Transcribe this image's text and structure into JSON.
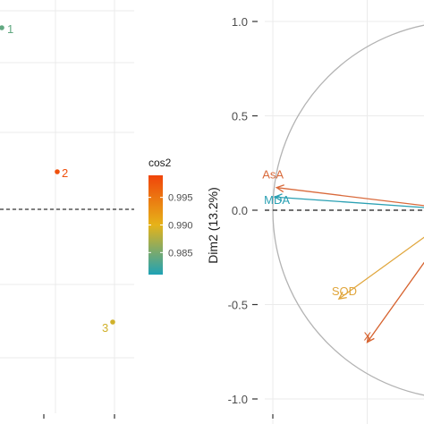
{
  "chart_data": [
    {
      "type": "scatter",
      "title": "",
      "xlabel": "",
      "ylabel": "",
      "grid": true,
      "reference_line": "horizontal dashed at y = 0",
      "points": [
        {
          "label": "1",
          "cos2": 0.984
        },
        {
          "label": "2",
          "cos2": 0.998
        },
        {
          "label": "3",
          "cos2": 0.989
        }
      ],
      "legend": {
        "title": "cos2",
        "ticks": [
          "0.985",
          "0.990",
          "0.995"
        ],
        "range": [
          0.981,
          0.999
        ],
        "colors": [
          "#1fa2b5",
          "#e6b319",
          "#f0440a"
        ],
        "placement": "right of left panel"
      }
    },
    {
      "type": "scatter",
      "title": "",
      "xlabel": "",
      "ylabel": "Dim2 (13.2%)",
      "ylim": [
        -1.1,
        1.1
      ],
      "y_ticks": [
        "-1.0",
        "-0.5",
        "0.0",
        "0.5",
        "1.0"
      ],
      "grid": true,
      "correlation_circle": true,
      "reference_line": "horizontal dashed at y = 0",
      "vectors": [
        {
          "label": "AsA",
          "x": -0.98,
          "y": 0.12,
          "color": "#d96a3b"
        },
        {
          "label": "MDA",
          "x": -0.99,
          "y": 0.07,
          "color": "#2aa0b3"
        },
        {
          "label": "SOD",
          "x": -0.65,
          "y": -0.47,
          "color": "#e0a53a"
        },
        {
          "label": "X",
          "x": -0.5,
          "y": -0.7,
          "color": "#d6622e"
        }
      ]
    }
  ]
}
